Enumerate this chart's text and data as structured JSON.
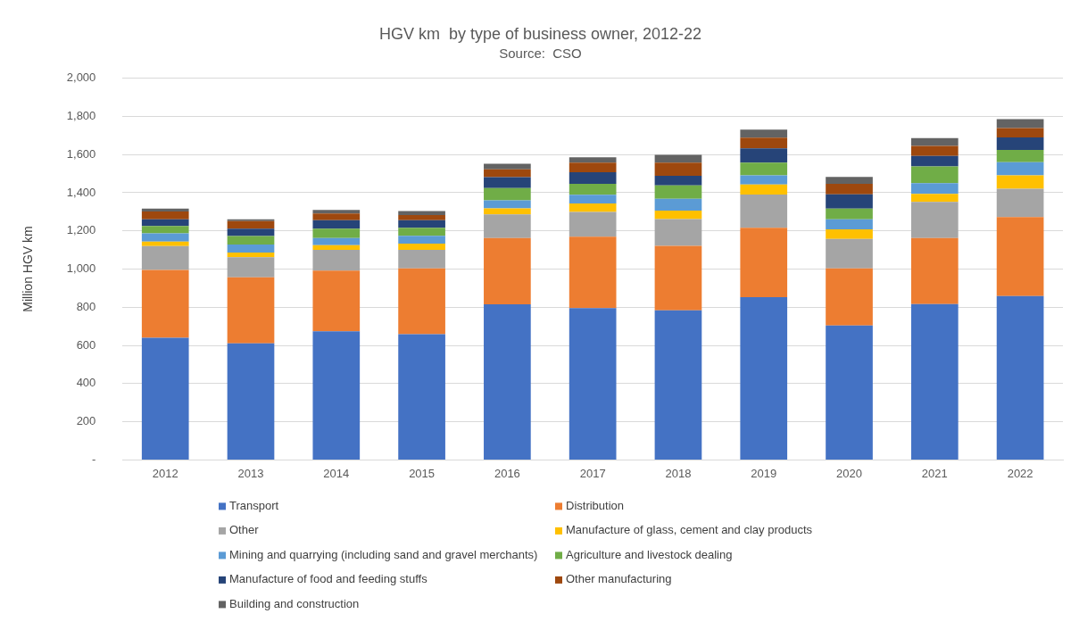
{
  "chart_data": {
    "type": "bar",
    "title": "HGV km  by type of business owner, 2012-22",
    "subtitle": "Source:  CSO",
    "ylabel": "Million HGV km",
    "categories": [
      "2012",
      "2013",
      "2014",
      "2015",
      "2016",
      "2017",
      "2018",
      "2019",
      "2020",
      "2021",
      "2022"
    ],
    "stacked": true,
    "grid": "y",
    "legend": "bottom",
    "ylim": [
      0,
      2000
    ],
    "yticks": [
      {
        "value": 0,
        "label": "-"
      },
      200,
      400,
      600,
      800,
      {
        "value": 1000,
        "label": "1,000"
      },
      {
        "value": 1200,
        "label": "1,200"
      },
      {
        "value": 1400,
        "label": "1,400"
      },
      {
        "value": 1600,
        "label": "1,600"
      },
      {
        "value": 1800,
        "label": "1,800"
      },
      {
        "value": 2000,
        "label": "2,000"
      }
    ],
    "series": [
      {
        "name": "Transport",
        "color": "#4472c4",
        "values": [
          640,
          611,
          674,
          659,
          815,
          795,
          784,
          853,
          704,
          816,
          859
        ]
      },
      {
        "name": "Distribution",
        "color": "#ed7d31",
        "values": [
          355,
          346,
          318,
          344,
          347,
          375,
          338,
          363,
          299,
          346,
          413
        ]
      },
      {
        "name": "Other",
        "color": "#a5a5a5",
        "values": [
          125,
          105,
          109,
          98,
          124,
          129,
          140,
          174,
          155,
          190,
          149
        ]
      },
      {
        "name": "Manufacture of glass, cement and clay products",
        "color": "#ffc000",
        "values": [
          24,
          24,
          24,
          32,
          32,
          45,
          44,
          53,
          50,
          42,
          70
        ]
      },
      {
        "name": "Mining and quarrying (including sand and gravel merchants)",
        "color": "#5b9bd5",
        "values": [
          43,
          42,
          38,
          41,
          42,
          45,
          62,
          48,
          53,
          56,
          69
        ]
      },
      {
        "name": "Agriculture and livestock dealing",
        "color": "#70ad47",
        "values": [
          39,
          45,
          48,
          42,
          64,
          57,
          70,
          66,
          56,
          88,
          64
        ]
      },
      {
        "name": "Manufacture of food and feeding stuffs",
        "color": "#264478",
        "values": [
          35,
          38,
          45,
          40,
          58,
          61,
          50,
          75,
          75,
          54,
          66
        ]
      },
      {
        "name": "Other manufacturing",
        "color": "#9e480e",
        "values": [
          40,
          40,
          35,
          27,
          41,
          50,
          69,
          56,
          54,
          53,
          49
        ]
      },
      {
        "name": "Building and construction",
        "color": "#636363",
        "values": [
          16,
          10,
          19,
          21,
          29,
          29,
          41,
          43,
          37,
          41,
          47
        ]
      }
    ]
  }
}
